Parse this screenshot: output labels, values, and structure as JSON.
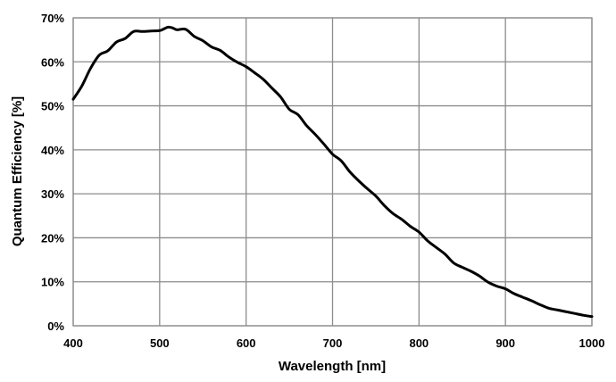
{
  "chart_data": {
    "type": "line",
    "title": "",
    "xlabel": "Wavelength [nm]",
    "ylabel": "Quantum Efficiency [%]",
    "xlim": [
      400,
      1000
    ],
    "ylim": [
      0,
      70
    ],
    "x_ticks": [
      400,
      500,
      600,
      700,
      800,
      900,
      1000
    ],
    "x_tick_labels": [
      "400",
      "500",
      "600",
      "700",
      "800",
      "900",
      "1000"
    ],
    "y_ticks": [
      0,
      10,
      20,
      30,
      40,
      50,
      60,
      70
    ],
    "y_tick_labels": [
      "0%",
      "10%",
      "20%",
      "30%",
      "40%",
      "50%",
      "60%",
      "70%"
    ],
    "grid": true,
    "legend": "none",
    "colors": {
      "line": "#000000",
      "grid": "#8c8c8c",
      "frame": "#8c8c8c"
    },
    "series": [
      {
        "x": [
          400,
          410,
          420,
          430,
          440,
          450,
          460,
          470,
          480,
          490,
          500,
          505,
          510,
          515,
          520,
          530,
          540,
          550,
          560,
          570,
          580,
          590,
          600,
          610,
          620,
          630,
          640,
          650,
          660,
          670,
          680,
          690,
          700,
          710,
          720,
          730,
          740,
          750,
          760,
          770,
          780,
          790,
          800,
          810,
          820,
          830,
          840,
          850,
          860,
          870,
          880,
          890,
          900,
          910,
          920,
          930,
          940,
          950,
          960,
          970,
          980,
          990,
          1000
        ],
        "values": [
          51.5,
          54.5,
          58.5,
          61.5,
          62.5,
          64.5,
          65.3,
          66.9,
          66.9,
          67.0,
          67.1,
          67.5,
          67.9,
          67.7,
          67.3,
          67.4,
          65.8,
          64.8,
          63.4,
          62.6,
          61.1,
          59.9,
          58.9,
          57.5,
          56.0,
          54.0,
          52.0,
          49.2,
          48.0,
          45.5,
          43.5,
          41.3,
          39.0,
          37.5,
          35.0,
          33.0,
          31.2,
          29.5,
          27.3,
          25.5,
          24.2,
          22.6,
          21.3,
          19.3,
          17.8,
          16.3,
          14.3,
          13.3,
          12.4,
          11.3,
          9.9,
          9.0,
          8.4,
          7.3,
          6.5,
          5.7,
          4.8,
          4.0,
          3.6,
          3.2,
          2.8,
          2.4,
          2.1
        ]
      }
    ]
  }
}
